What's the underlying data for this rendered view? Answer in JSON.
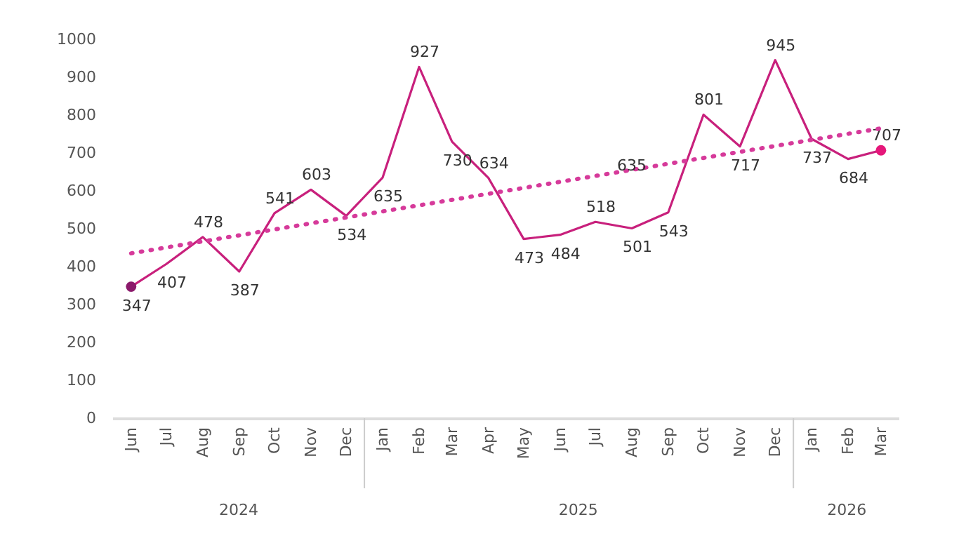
{
  "chart_data": {
    "type": "line",
    "x": [
      "2024-06",
      "2024-07",
      "2024-08",
      "2024-09",
      "2024-10",
      "2024-11",
      "2024-12",
      "2025-01",
      "2025-02",
      "2025-03",
      "2025-04",
      "2025-05",
      "2025-06",
      "2025-07",
      "2025-08",
      "2025-09",
      "2025-10",
      "2025-11",
      "2025-12",
      "2026-01",
      "2026-02",
      "2026-03"
    ],
    "series": [
      {
        "color": "#c8207c",
        "values": [
          347,
          407,
          478,
          387,
          541,
          603,
          534,
          635,
          927,
          730,
          634,
          473,
          484,
          518,
          501,
          543,
          801,
          717,
          945,
          737,
          684,
          707
        ],
        "value_labels": [
          "347",
          "407",
          "478",
          "387",
          "541",
          "603",
          "534",
          "635",
          "927",
          "730",
          "634",
          "473",
          "484",
          "518",
          "501",
          "543",
          "801",
          "717",
          "945",
          "737",
          "684",
          "707"
        ]
      },
      {
        "type": "line",
        "line_style": "dotted",
        "color": "#d63a9a",
        "x": [
          "2024-06",
          "2026-03"
        ],
        "values": [
          435,
          765
        ]
      },
      {
        "type": "scatter",
        "x": [
          "2024-06",
          "2026-03"
        ],
        "colors": [
          "#8b1a6b",
          "#e5177a"
        ],
        "values": [
          347,
          707
        ]
      }
    ],
    "annotations": [
      {
        "text": "635",
        "x": "2025-08",
        "y": 635
      },
      "2024",
      "2025",
      "2026"
    ],
    "xlim": [
      "2024-05-16",
      "2026-03-16"
    ],
    "xticks": [
      {
        "value": "2024-06",
        "label": "Jun"
      },
      {
        "value": "2024-07",
        "label": "Jul"
      },
      {
        "value": "2024-08",
        "label": "Aug"
      },
      {
        "value": "2024-09",
        "label": "Sep"
      },
      {
        "value": "2024-10",
        "label": "Oct"
      },
      {
        "value": "2024-11",
        "label": "Nov"
      },
      {
        "value": "2024-12",
        "label": "Dec"
      },
      {
        "value": "2025-01",
        "label": "Jan"
      },
      {
        "value": "2025-02",
        "label": "Feb"
      },
      {
        "value": "2025-03",
        "label": "Mar"
      },
      {
        "value": "2025-04",
        "label": "Apr"
      },
      {
        "value": "2025-05",
        "label": "May"
      },
      {
        "value": "2025-06",
        "label": "Jun"
      },
      {
        "value": "2025-07",
        "label": "Jul"
      },
      {
        "value": "2025-08",
        "label": "Aug"
      },
      {
        "value": "2025-09",
        "label": "Sep"
      },
      {
        "value": "2025-10",
        "label": "Oct"
      },
      {
        "value": "2025-11",
        "label": "Nov"
      },
      {
        "value": "2025-12",
        "label": "Dec"
      },
      {
        "value": "2026-01",
        "label": "Jan"
      },
      {
        "value": "2026-02",
        "label": "Feb"
      },
      {
        "value": "2026-03",
        "label": "Mar"
      }
    ],
    "ylim": [
      0,
      1000
    ],
    "yticks": [
      0,
      100,
      200,
      300,
      400,
      500,
      600,
      700,
      800,
      900,
      1000
    ],
    "grid": false,
    "legend": false
  }
}
